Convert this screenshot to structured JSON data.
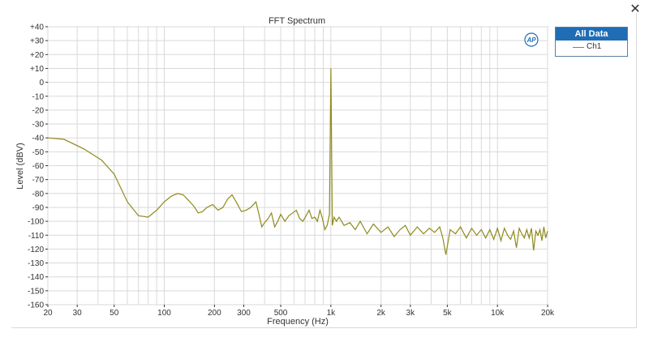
{
  "window": {
    "close_glyph": "✕"
  },
  "logo_text": "AP",
  "colors": {
    "series": "#8f8a1c",
    "grid": "#d9d9d9",
    "axis": "#333333",
    "legend_header": "#1f6db5"
  },
  "legend": {
    "header": "All Data",
    "items": [
      "Ch1"
    ],
    "placement": "top-right, outside plot"
  },
  "chart_data": {
    "type": "line",
    "title": "FFT Spectrum",
    "xlabel": "Frequency (Hz)",
    "ylabel": "Level (dBV)",
    "x_scale": "log",
    "xlim": [
      20,
      20000
    ],
    "ylim": [
      -160,
      40
    ],
    "grid": true,
    "x_ticks": [
      20,
      30,
      50,
      100,
      200,
      300,
      500,
      1000,
      2000,
      3000,
      5000,
      10000,
      20000
    ],
    "x_tick_labels": [
      "20",
      "30",
      "50",
      "100",
      "200",
      "300",
      "500",
      "1k",
      "2k",
      "3k",
      "5k",
      "10k",
      "20k"
    ],
    "y_ticks": [
      40,
      30,
      20,
      10,
      0,
      -10,
      -20,
      -30,
      -40,
      -50,
      -60,
      -70,
      -80,
      -90,
      -100,
      -110,
      -120,
      -130,
      -140,
      -150,
      -160
    ],
    "y_tick_labels": [
      "+40",
      "+30",
      "+20",
      "+10",
      "0",
      "-10",
      "-20",
      "-30",
      "-40",
      "-50",
      "-60",
      "-70",
      "-80",
      "-90",
      "-100",
      "-110",
      "-120",
      "-130",
      "-140",
      "-150",
      "-160"
    ],
    "series": [
      {
        "name": "Ch1",
        "x": [
          20,
          25,
          33,
          42,
          50,
          60,
          70,
          80,
          90,
          100,
          110,
          120,
          130,
          140,
          150,
          160,
          170,
          180,
          195,
          210,
          225,
          240,
          255,
          270,
          290,
          310,
          330,
          355,
          370,
          385,
          400,
          420,
          440,
          460,
          480,
          500,
          530,
          560,
          590,
          620,
          650,
          680,
          710,
          740,
          770,
          800,
          830,
          860,
          890,
          920,
          950,
          980,
          1000,
          1020,
          1045,
          1080,
          1120,
          1200,
          1300,
          1400,
          1500,
          1650,
          1800,
          2000,
          2200,
          2400,
          2600,
          2800,
          3000,
          3300,
          3600,
          3900,
          4200,
          4500,
          4700,
          4900,
          5200,
          5600,
          6000,
          6500,
          7000,
          7500,
          8000,
          8500,
          9000,
          9500,
          10000,
          10500,
          11000,
          11500,
          12000,
          12500,
          13000,
          13500,
          14000,
          14500,
          15000,
          15500,
          16000,
          16500,
          17000,
          17500,
          18000,
          18500,
          19000,
          19500,
          20000
        ],
        "y": [
          -40,
          -41,
          -48,
          -56,
          -66,
          -86,
          -96,
          -97,
          -92,
          -86,
          -82,
          -80,
          -81,
          -85,
          -89,
          -94,
          -93,
          -90,
          -88,
          -92,
          -90,
          -84,
          -81,
          -86,
          -93,
          -92,
          -90,
          -86,
          -95,
          -104,
          -101,
          -98,
          -94,
          -104,
          -100,
          -95,
          -100,
          -96,
          -94,
          -92,
          -98,
          -100,
          -96,
          -92,
          -98,
          -97,
          -100,
          -92,
          -98,
          -106,
          -103,
          -95,
          10,
          -103,
          -97,
          -100,
          -97,
          -103,
          -101,
          -106,
          -100,
          -109,
          -102,
          -108,
          -104,
          -111,
          -106,
          -103,
          -110,
          -104,
          -109,
          -105,
          -108,
          -104,
          -112,
          -124,
          -106,
          -109,
          -104,
          -112,
          -105,
          -110,
          -106,
          -112,
          -106,
          -113,
          -105,
          -114,
          -105,
          -110,
          -113,
          -107,
          -119,
          -105,
          -109,
          -112,
          -106,
          -112,
          -105,
          -121,
          -107,
          -110,
          -106,
          -114,
          -104,
          -112,
          -107
        ]
      }
    ]
  }
}
